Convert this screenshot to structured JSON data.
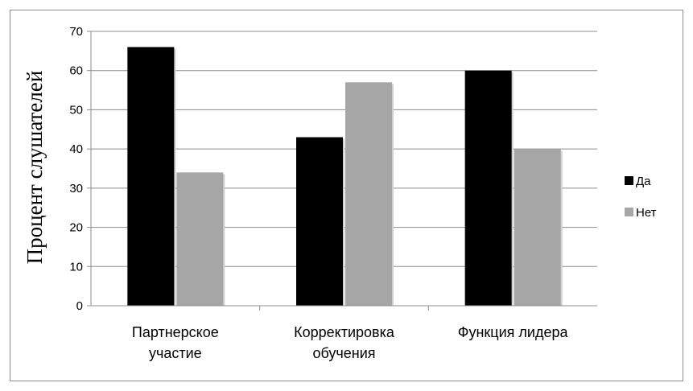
{
  "chart_data": {
    "type": "bar",
    "ylabel": "Процент слушателей",
    "xlabel": "",
    "title": "",
    "ylim": [
      0,
      70
    ],
    "yticks": [
      0,
      10,
      20,
      30,
      40,
      50,
      60,
      70
    ],
    "grid": true,
    "legend_position": "right",
    "categories": [
      [
        "Партнерское",
        "участие"
      ],
      [
        "Корректировка",
        "обучения"
      ],
      [
        "Функция лидера"
      ]
    ],
    "series": [
      {
        "name": "Да",
        "color": "#000000",
        "values": [
          66,
          43,
          60
        ]
      },
      {
        "name": "Нет",
        "color": "#a6a6a6",
        "values": [
          34,
          57,
          40
        ]
      }
    ]
  }
}
